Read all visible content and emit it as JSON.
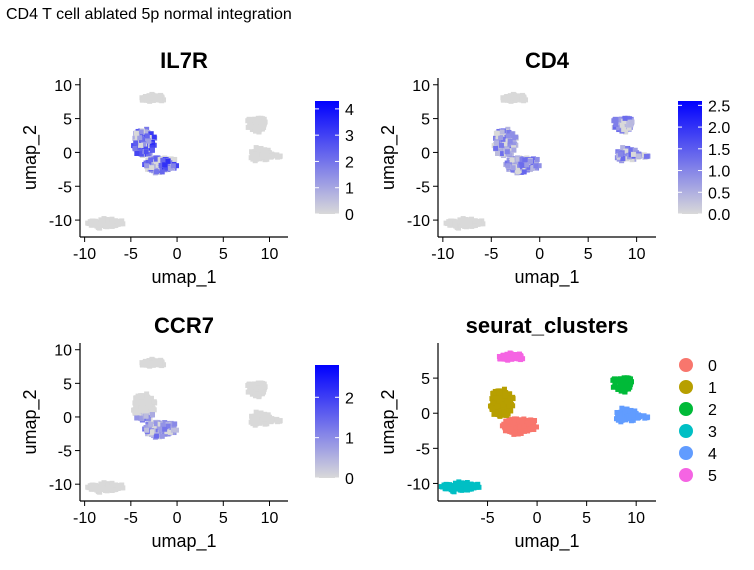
{
  "page": {
    "title": "CD4 T cell ablated 5p normal integration"
  },
  "chart_data": [
    {
      "type": "scatter",
      "variant": "feature",
      "title": "IL7R",
      "xlabel": "umap_1",
      "ylabel": "umap_2",
      "xlim": [
        -10.5,
        12
      ],
      "ylim": [
        -12.5,
        11
      ],
      "xticks": [
        -10,
        -5,
        0,
        5,
        10
      ],
      "yticks": [
        -10,
        -5,
        0,
        5,
        10
      ],
      "colorbar": {
        "min": 0,
        "max": 4.3,
        "ticks": [
          "0",
          "1",
          "2",
          "3",
          "4"
        ],
        "tick_values": [
          0,
          1,
          2,
          3,
          4
        ],
        "low_color": "#d9d9d9",
        "high_color": "#0000ff"
      },
      "expression_hotspot": {
        "island": "center",
        "level": 0.45
      }
    },
    {
      "type": "scatter",
      "variant": "feature",
      "title": "CD4",
      "xlabel": "umap_1",
      "ylabel": "umap_2",
      "xlim": [
        -10.5,
        12
      ],
      "ylim": [
        -12.5,
        11
      ],
      "xticks": [
        -10,
        -5,
        0,
        5,
        10
      ],
      "yticks": [
        -10,
        -5,
        0,
        5,
        10
      ],
      "colorbar": {
        "min": 0,
        "max": 2.6,
        "ticks": [
          "0.0",
          "0.5",
          "1.0",
          "1.5",
          "2.0",
          "2.5"
        ],
        "tick_values": [
          0,
          0.5,
          1.0,
          1.5,
          2.0,
          2.5
        ],
        "low_color": "#d9d9d9",
        "high_color": "#0000ff"
      },
      "expression_hotspot": {
        "island": "center+right",
        "level": 0.3
      }
    },
    {
      "type": "scatter",
      "variant": "feature",
      "title": "CCR7",
      "xlabel": "umap_1",
      "ylabel": "umap_2",
      "xlim": [
        -10.5,
        12
      ],
      "ylim": [
        -12.5,
        11
      ],
      "xticks": [
        -10,
        -5,
        0,
        5,
        10
      ],
      "yticks": [
        -10,
        -5,
        0,
        5,
        10
      ],
      "colorbar": {
        "min": 0,
        "max": 2.8,
        "ticks": [
          "0",
          "1",
          "2"
        ],
        "tick_values": [
          0,
          1,
          2
        ],
        "low_color": "#d9d9d9",
        "high_color": "#0000ff"
      },
      "expression_hotspot": {
        "island": "center-lower",
        "level": 0.28
      }
    },
    {
      "type": "scatter",
      "variant": "clusters",
      "title": "seurat_clusters",
      "xlabel": "umap_1",
      "ylabel": "umap_2",
      "xlim": [
        -10,
        12
      ],
      "ylim": [
        -12.5,
        10
      ],
      "xticks": [
        -5,
        0,
        5,
        10
      ],
      "yticks": [
        -10,
        -5,
        0,
        5
      ],
      "legend": {
        "placement": "right",
        "entries": [
          {
            "label": "0",
            "color": "#F8766D"
          },
          {
            "label": "1",
            "color": "#B79F00"
          },
          {
            "label": "2",
            "color": "#00BA38"
          },
          {
            "label": "3",
            "color": "#00BFC4"
          },
          {
            "label": "4",
            "color": "#619CFF"
          },
          {
            "label": "5",
            "color": "#F564E3"
          }
        ]
      }
    }
  ],
  "clusters": [
    {
      "id": "0",
      "cx": -1.8,
      "cy": -1.8,
      "rx": 1.7,
      "ry": 1.0,
      "n": 160
    },
    {
      "id": "1",
      "cx": -3.6,
      "cy": 1.5,
      "rx": 1.1,
      "ry": 2.0,
      "n": 150
    },
    {
      "id": "2",
      "cx": 8.7,
      "cy": 4.2,
      "rx": 0.9,
      "ry": 1.1,
      "n": 60
    },
    {
      "id": "3",
      "cx": -8.0,
      "cy": -10.5,
      "rx": 1.6,
      "ry": 0.55,
      "n": 80
    },
    {
      "id": "4",
      "cx": 9.0,
      "cy": -0.3,
      "rx": 1.0,
      "ry": 0.9,
      "n": 60
    },
    {
      "id": "5",
      "cx": -2.6,
      "cy": 7.9,
      "rx": 1.3,
      "ry": 0.5,
      "n": 50
    }
  ]
}
